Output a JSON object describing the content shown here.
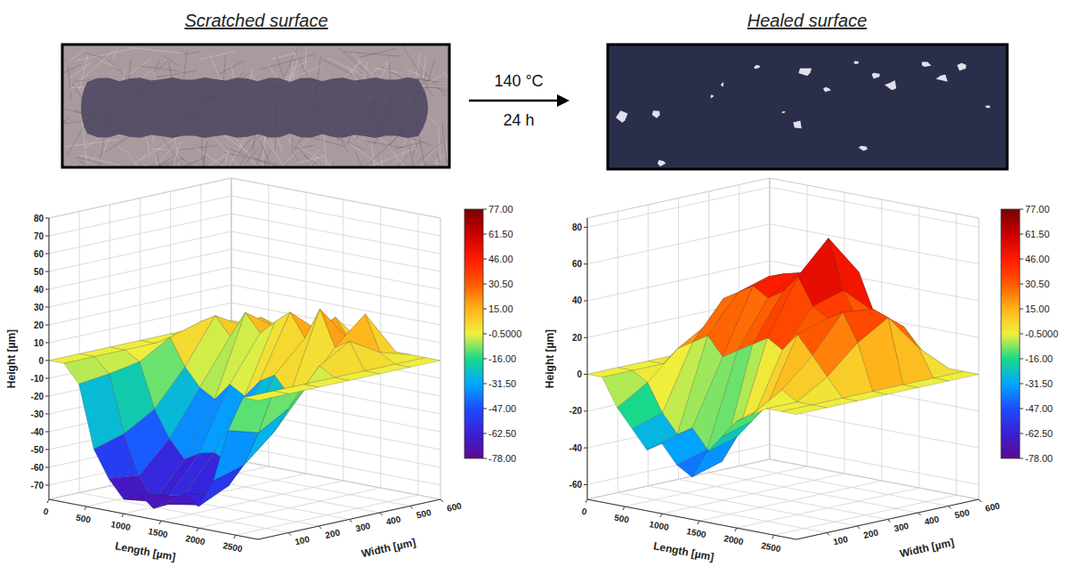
{
  "header": {
    "left_title": "Scratched surface",
    "right_title": "Healed surface",
    "condition_temperature": "140 °C",
    "condition_time": "24 h"
  },
  "chart_data": [
    {
      "type": "surface",
      "xlabel": "Length [µm]",
      "ylabel": "Width [µm]",
      "zlabel": "Height [µm]",
      "x": [
        0,
        200,
        400,
        600,
        800,
        1000,
        1200,
        1400,
        1600,
        1800,
        2000,
        2200,
        2400,
        2600,
        2800
      ],
      "y": [
        0,
        100,
        200,
        300,
        400,
        500,
        600
      ],
      "z": [
        [
          0,
          0,
          -10,
          -45,
          -60,
          -70,
          -65,
          -72,
          -68,
          -60,
          -66,
          -50,
          -20,
          0,
          0
        ],
        [
          0,
          0,
          -8,
          -40,
          -62,
          -75,
          -70,
          -68,
          -72,
          -65,
          -58,
          -45,
          -25,
          0,
          0
        ],
        [
          0,
          0,
          -5,
          -30,
          -45,
          -55,
          -50,
          -48,
          -52,
          -40,
          -35,
          -30,
          -15,
          0,
          0
        ],
        [
          0,
          0,
          5,
          -10,
          -20,
          -25,
          -15,
          -20,
          -10,
          -5,
          -15,
          -10,
          5,
          0,
          0
        ],
        [
          0,
          0,
          10,
          15,
          5,
          20,
          10,
          18,
          25,
          12,
          30,
          10,
          15,
          0,
          0
        ],
        [
          0,
          0,
          0,
          5,
          12,
          8,
          15,
          5,
          10,
          20,
          8,
          25,
          5,
          0,
          0
        ],
        [
          0,
          0,
          0,
          0,
          0,
          0,
          0,
          0,
          0,
          0,
          0,
          0,
          0,
          0,
          0
        ]
      ],
      "xlim": [
        0,
        2800
      ],
      "ylim": [
        0,
        600
      ],
      "zlim": [
        -78,
        80
      ],
      "xticks": [
        0,
        500,
        1000,
        1500,
        2000,
        2500
      ],
      "yticks": [
        100,
        200,
        300,
        400,
        500,
        600
      ],
      "zticks": [
        -70,
        -60,
        -50,
        -40,
        -30,
        -20,
        -10,
        0,
        10,
        20,
        30,
        40,
        50,
        60,
        70,
        80
      ],
      "grid": true,
      "colorbar": {
        "range": [
          -78,
          77
        ],
        "ticks": [
          {
            "value": 77,
            "label": "77.00"
          },
          {
            "value": 61.5,
            "label": "61.50"
          },
          {
            "value": 46,
            "label": "46.00"
          },
          {
            "value": 30.5,
            "label": "30.50"
          },
          {
            "value": 15,
            "label": "15.00"
          },
          {
            "value": -0.5,
            "label": "-0.5000"
          },
          {
            "value": -16,
            "label": "-16.00"
          },
          {
            "value": -31.5,
            "label": "-31.50"
          },
          {
            "value": -47,
            "label": "-47.00"
          },
          {
            "value": -62.5,
            "label": "-62.50"
          },
          {
            "value": -78,
            "label": "-78.00"
          }
        ]
      }
    },
    {
      "type": "surface",
      "xlabel": "Length [µm]",
      "ylabel": "Width [µm]",
      "zlabel": "Height [µm]",
      "x": [
        0,
        200,
        400,
        600,
        800,
        1000,
        1200,
        1400,
        1600,
        1800,
        2000,
        2200,
        2400,
        2600,
        2800
      ],
      "y": [
        0,
        100,
        200,
        300,
        400,
        500,
        600
      ],
      "z": [
        [
          0,
          0,
          -15,
          -25,
          -35,
          -30,
          -40,
          -45,
          -30,
          -20,
          -10,
          -5,
          0,
          0,
          0
        ],
        [
          0,
          0,
          -5,
          -20,
          -30,
          -25,
          -35,
          -40,
          -25,
          -15,
          -5,
          5,
          0,
          0,
          0
        ],
        [
          0,
          0,
          10,
          15,
          20,
          10,
          15,
          20,
          25,
          20,
          30,
          20,
          10,
          0,
          0
        ],
        [
          0,
          5,
          20,
          35,
          40,
          45,
          40,
          45,
          55,
          40,
          35,
          40,
          25,
          0,
          0
        ],
        [
          0,
          0,
          15,
          30,
          45,
          48,
          50,
          52,
          72,
          45,
          30,
          38,
          35,
          0,
          0
        ],
        [
          0,
          0,
          5,
          15,
          25,
          35,
          40,
          45,
          50,
          30,
          20,
          25,
          15,
          0,
          0
        ],
        [
          0,
          0,
          0,
          0,
          0,
          0,
          0,
          0,
          0,
          0,
          0,
          0,
          0,
          0,
          0
        ]
      ],
      "xlim": [
        0,
        2800
      ],
      "ylim": [
        0,
        600
      ],
      "zlim": [
        -68,
        85
      ],
      "xticks": [
        0,
        500,
        1000,
        1500,
        2000,
        2500
      ],
      "yticks": [
        100,
        200,
        300,
        400,
        500,
        600
      ],
      "zticks": [
        -60,
        -40,
        -20,
        0,
        20,
        40,
        60,
        80
      ],
      "grid": true,
      "colorbar": {
        "range": [
          -78,
          77
        ],
        "ticks": [
          {
            "value": 77,
            "label": "77.00"
          },
          {
            "value": 61.5,
            "label": "61.50"
          },
          {
            "value": 46,
            "label": "46.00"
          },
          {
            "value": 30.5,
            "label": "30.50"
          },
          {
            "value": 15,
            "label": "15.00"
          },
          {
            "value": -0.5,
            "label": "-0.5000"
          },
          {
            "value": -16,
            "label": "-16.00"
          },
          {
            "value": -31.5,
            "label": "-31.50"
          },
          {
            "value": -47,
            "label": "-47.00"
          },
          {
            "value": -62.5,
            "label": "-62.50"
          },
          {
            "value": -78,
            "label": "-78.00"
          }
        ]
      }
    }
  ]
}
